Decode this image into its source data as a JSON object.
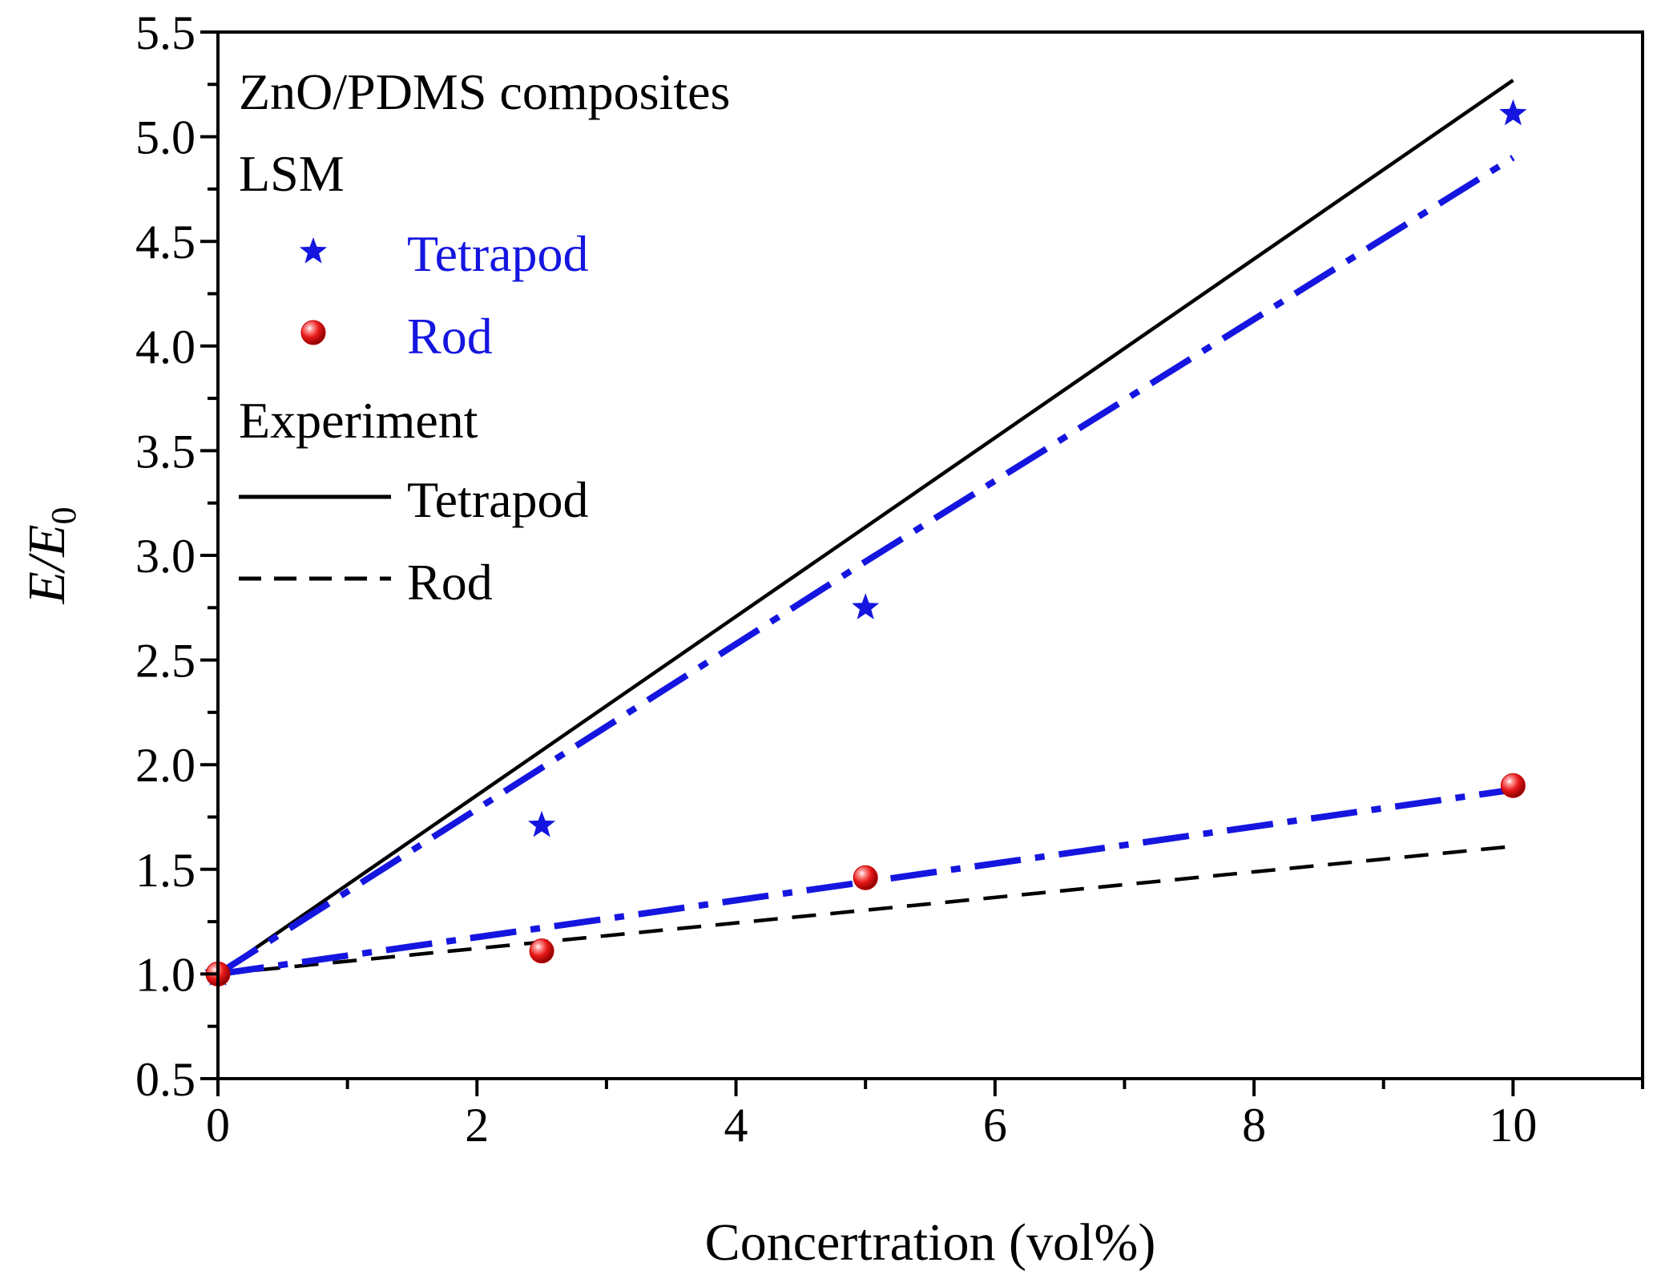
{
  "chart_data": {
    "type": "scatter",
    "title": "",
    "xlabel": "Concertration (vol%)",
    "ylabel": {
      "main": "E/E",
      "sub": "0"
    },
    "xlim": [
      0,
      11
    ],
    "ylim": [
      0.5,
      5.5
    ],
    "x_ticks": [
      0,
      2,
      4,
      6,
      8,
      10
    ],
    "x_tick_labels": [
      "0",
      "2",
      "4",
      "6",
      "8",
      "10"
    ],
    "y_ticks": [
      0.5,
      1.0,
      1.5,
      2.0,
      2.5,
      3.0,
      3.5,
      4.0,
      4.5,
      5.0,
      5.5
    ],
    "y_tick_labels": [
      "0.5",
      "1.0",
      "1.5",
      "2.0",
      "2.5",
      "3.0",
      "3.5",
      "4.0",
      "4.5",
      "5.0",
      "5.5"
    ],
    "grid": false,
    "legend_position": "top-left",
    "legend": {
      "title": "ZnO/PDMS composites",
      "groups": [
        {
          "title": "LSM",
          "entries": [
            "Tetrapod",
            "Rod"
          ]
        },
        {
          "title": "Experiment",
          "entries": [
            "Tetrapod",
            "Rod"
          ]
        }
      ]
    },
    "series": [
      {
        "name": "LSM Tetrapod",
        "kind": "scatter",
        "marker": "star",
        "color": "#1515e0",
        "x": [
          0,
          2.5,
          5,
          10
        ],
        "y": [
          1.0,
          1.71,
          2.75,
          5.11
        ]
      },
      {
        "name": "LSM Rod",
        "kind": "scatter",
        "marker": "sphere",
        "color": "#e81818",
        "x": [
          0,
          2.5,
          5,
          10
        ],
        "y": [
          1.0,
          1.11,
          1.46,
          1.9
        ]
      },
      {
        "name": "Experiment Tetrapod",
        "kind": "line",
        "style": "solid",
        "color": "#000000",
        "x": [
          0,
          10
        ],
        "y": [
          1.0,
          5.27
        ]
      },
      {
        "name": "Experiment Rod",
        "kind": "line",
        "style": "dashed",
        "color": "#000000",
        "x": [
          0,
          10
        ],
        "y": [
          1.0,
          1.61
        ]
      },
      {
        "name": "LSM Tetrapod fit",
        "kind": "line",
        "style": "dashdot",
        "color": "#1515e0",
        "x": [
          0,
          5,
          10
        ],
        "y": [
          1.0,
          2.97,
          4.9
        ]
      },
      {
        "name": "LSM Rod fit",
        "kind": "line",
        "style": "dashdot",
        "color": "#1515e0",
        "x": [
          0,
          5,
          10
        ],
        "y": [
          1.0,
          1.44,
          1.88
        ]
      }
    ]
  }
}
